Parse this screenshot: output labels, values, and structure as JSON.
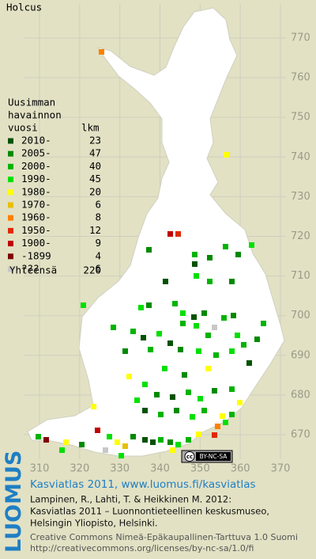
{
  "title": "Holcus",
  "legend": {
    "heading": [
      "Uusimman",
      "havainnon",
      "vuosi"
    ],
    "count_heading": "lkm",
    "rows": [
      {
        "label": "2010-",
        "count": 23,
        "color": "#005200"
      },
      {
        "label": "2005-",
        "count": 47,
        "color": "#008a00"
      },
      {
        "label": "2000-",
        "count": 40,
        "color": "#00b400"
      },
      {
        "label": "1990-",
        "count": 45,
        "color": "#00e000"
      },
      {
        "label": "1980-",
        "count": 20,
        "color": "#ffff00"
      },
      {
        "label": "1970-",
        "count": 6,
        "color": "#e6c000"
      },
      {
        "label": "1960-",
        "count": 8,
        "color": "#ff8000"
      },
      {
        "label": "1950-",
        "count": 12,
        "color": "#e02800"
      },
      {
        "label": "1900-",
        "count": 9,
        "color": "#c00000"
      },
      {
        "label": "-1899",
        "count": 4,
        "color": "#800000"
      },
      {
        "label": "???",
        "count": 6,
        "color": "#c8c8c8"
      }
    ],
    "total_label": "Yhteensä",
    "total": 220
  },
  "axes": {
    "x_ticks": [
      310,
      320,
      330,
      340,
      350,
      360,
      370
    ],
    "y_ticks": [
      670,
      680,
      690,
      700,
      710,
      720,
      730,
      740,
      750,
      760,
      770
    ]
  },
  "badge": {
    "symbol": "cc",
    "text": "BY-NC-SA"
  },
  "logo": "LUOMUS",
  "footer": {
    "headline": "Kasviatlas 2011, www.luomus.fi/kasviatlas",
    "citation": [
      "Lampinen, R., Lahti, T. & Heikkinen M. 2012:",
      "Kasviatlas 2011 – Luonnontieteellinen keskusmuseo,",
      "Helsingin Yliopisto, Helsinki."
    ],
    "license": [
      "Creative Commons Nimeä-Epäkaupallinen-Tarttuva 1.0 Suomi",
      "http://creativecommons.org/licenses/by-nc-sa/1.0/fi"
    ]
  }
}
